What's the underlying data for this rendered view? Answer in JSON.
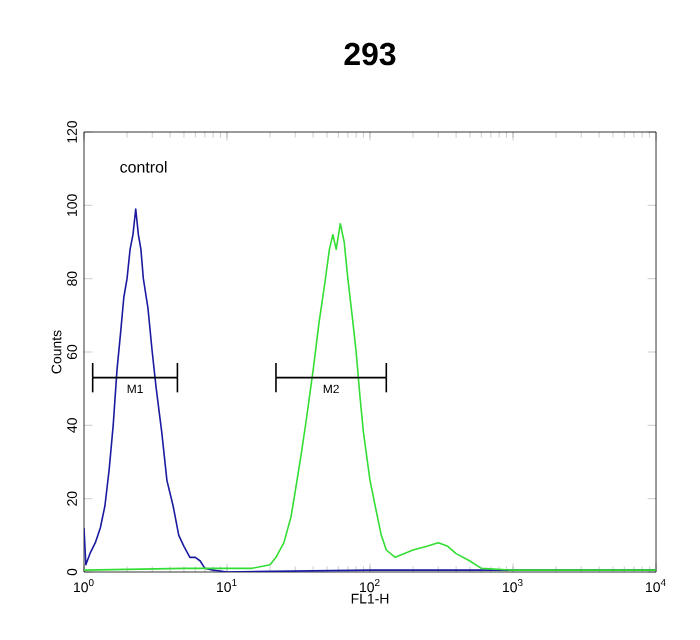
{
  "chart_data": {
    "type": "line",
    "title": "293",
    "xlabel": "FL1-H",
    "ylabel": "Counts",
    "log": "x",
    "xlim": [
      1,
      10000
    ],
    "ylim": [
      0,
      120
    ],
    "yticks": [
      0,
      20,
      40,
      60,
      80,
      100,
      120
    ],
    "xticks": [
      {
        "value": 1,
        "label": "10$^{0}$"
      },
      {
        "value": 10,
        "label": "10$^{1}$"
      },
      {
        "value": 100,
        "label": "10$^{2}$"
      },
      {
        "value": 1000,
        "label": "10$^{3}$"
      },
      {
        "value": 10000,
        "label": "10$^{4}$"
      }
    ],
    "annotations": [
      "control"
    ],
    "grid": false,
    "marker": "none",
    "series": [
      {
        "color": "#1a1aa0",
        "x": [
          1.0,
          1.03,
          1.1,
          1.2,
          1.3,
          1.4,
          1.5,
          1.6,
          1.7,
          1.8,
          1.9,
          2.0,
          2.1,
          2.2,
          2.3,
          2.4,
          2.5,
          2.6,
          2.8,
          3.0,
          3.2,
          3.5,
          3.8,
          4.2,
          4.6,
          5.0,
          5.5,
          6.0,
          6.5,
          7,
          8,
          10,
          100,
          1000,
          10000
        ],
        "values": [
          12,
          2,
          5,
          8,
          12,
          18,
          28,
          40,
          55,
          65,
          75,
          80,
          88,
          92,
          99,
          92,
          88,
          80,
          72,
          60,
          50,
          38,
          25,
          18,
          10,
          7,
          4,
          4,
          3,
          1,
          0.5,
          0,
          0.5,
          0.5,
          0.5
        ]
      },
      {
        "color": "#33dd33",
        "x": [
          1,
          5,
          10,
          15,
          20,
          22,
          25,
          28,
          30,
          33,
          36,
          40,
          44,
          48,
          52,
          55,
          58,
          62,
          66,
          70,
          75,
          80,
          85,
          90,
          100,
          110,
          120,
          130,
          150,
          200,
          250,
          300,
          350,
          400,
          500,
          600,
          1000,
          10000
        ],
        "values": [
          0.5,
          1,
          1,
          1,
          2,
          4,
          8,
          15,
          22,
          32,
          42,
          55,
          68,
          78,
          88,
          92,
          88,
          95,
          90,
          80,
          70,
          60,
          48,
          38,
          25,
          17,
          10,
          6,
          4,
          6,
          7,
          8,
          7,
          5,
          3,
          1,
          0.5,
          0.5
        ]
      },
      {
        "name": "M1",
        "color": "#000000",
        "x": [
          1.15,
          4.5
        ],
        "values": [
          53,
          53
        ],
        "errors": [
          4,
          4
        ]
      },
      {
        "name": "M2",
        "color": "#000000",
        "x": [
          22,
          130
        ],
        "values": [
          53,
          53
        ],
        "errors": [
          4,
          4
        ]
      }
    ]
  }
}
